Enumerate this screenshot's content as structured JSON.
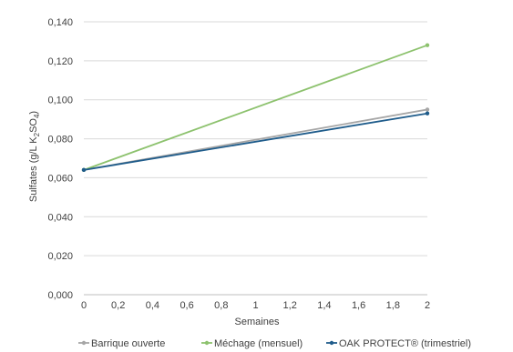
{
  "chart_data": {
    "type": "line",
    "title": "",
    "xlabel": "Semaines",
    "ylabel_parts": [
      "Sulfates (g/L K",
      "2",
      "SO",
      "4",
      ")"
    ],
    "xlim": [
      0,
      2
    ],
    "ylim": [
      0,
      0.14
    ],
    "x_ticks": [
      0,
      0.2,
      0.4,
      0.6,
      0.8,
      1,
      1.2,
      1.4,
      1.6,
      1.8,
      2
    ],
    "x_tick_labels": [
      "0",
      "0,2",
      "0,4",
      "0,6",
      "0,8",
      "1",
      "1,2",
      "1,4",
      "1,6",
      "1,8",
      "2"
    ],
    "y_ticks": [
      0,
      0.02,
      0.04,
      0.06,
      0.08,
      0.1,
      0.12,
      0.14
    ],
    "y_tick_labels": [
      "0,000",
      "0,020",
      "0,040",
      "0,060",
      "0,080",
      "0,100",
      "0,120",
      "0,140"
    ],
    "grid": "horizontal",
    "legend_position": "bottom",
    "series": [
      {
        "name": "Barrique ouverte",
        "color": "#a6a6a6",
        "x": [
          0,
          2
        ],
        "y": [
          0.064,
          0.095
        ]
      },
      {
        "name": "Méchage (mensuel)",
        "color": "#8dc26e",
        "x": [
          0,
          2
        ],
        "y": [
          0.064,
          0.128
        ]
      },
      {
        "name": "OAK PROTECT® (trimestriel)",
        "color": "#1f5c8b",
        "x": [
          0,
          2
        ],
        "y": [
          0.064,
          0.093
        ]
      }
    ]
  }
}
